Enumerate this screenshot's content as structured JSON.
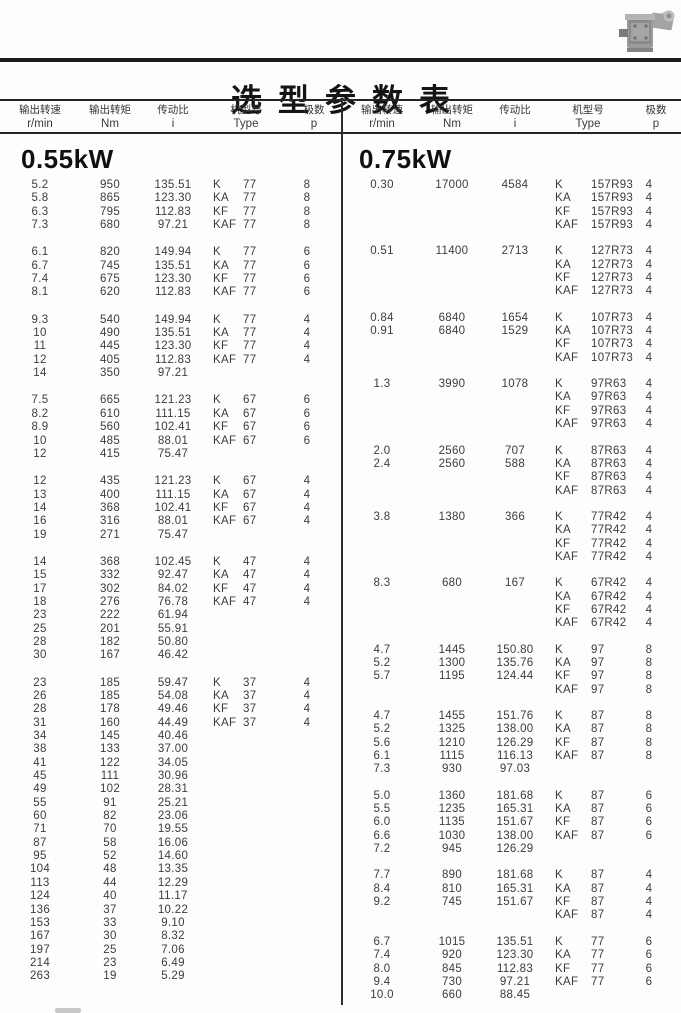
{
  "title": "选型参数表",
  "columns": {
    "speed_label": "输出转速",
    "speed_unit": "r/min",
    "torque_label": "输出转矩",
    "torque_unit": "Nm",
    "ratio_label": "传动比",
    "ratio_unit": "i",
    "type_label": "机型号",
    "type_unit": "Type",
    "poles_label": "极数",
    "poles_unit": "p"
  },
  "logo": "gearmotor-photo",
  "colors": {
    "rule": "#1b1b1b",
    "text": "#3c3c3c",
    "background": "#fdfdfc"
  },
  "tables": [
    {
      "power": "0.55kW",
      "groups": [
        {
          "rows": [
            [
              "5.2",
              "950",
              "135.51",
              "K",
              "77",
              "8"
            ],
            [
              "5.8",
              "865",
              "123.30",
              "KA",
              "77",
              "8"
            ],
            [
              "6.3",
              "795",
              "112.83",
              "KF",
              "77",
              "8"
            ],
            [
              "7.3",
              "680",
              "97.21",
              "KAF",
              "77",
              "8"
            ]
          ]
        },
        {
          "rows": [
            [
              "6.1",
              "820",
              "149.94",
              "K",
              "77",
              "6"
            ],
            [
              "6.7",
              "745",
              "135.51",
              "KA",
              "77",
              "6"
            ],
            [
              "7.4",
              "675",
              "123.30",
              "KF",
              "77",
              "6"
            ],
            [
              "8.1",
              "620",
              "112.83",
              "KAF",
              "77",
              "6"
            ]
          ]
        },
        {
          "rows": [
            [
              "9.3",
              "540",
              "149.94",
              "K",
              "77",
              "4"
            ],
            [
              "10",
              "490",
              "135.51",
              "KA",
              "77",
              "4"
            ],
            [
              "11",
              "445",
              "123.30",
              "KF",
              "77",
              "4"
            ],
            [
              "12",
              "405",
              "112.83",
              "KAF",
              "77",
              "4"
            ],
            [
              "14",
              "350",
              "97.21",
              "",
              "",
              ""
            ]
          ]
        },
        {
          "rows": [
            [
              "7.5",
              "665",
              "121.23",
              "K",
              "67",
              "6"
            ],
            [
              "8.2",
              "610",
              "111.15",
              "KA",
              "67",
              "6"
            ],
            [
              "8.9",
              "560",
              "102.41",
              "KF",
              "67",
              "6"
            ],
            [
              "10",
              "485",
              "88.01",
              "KAF",
              "67",
              "6"
            ],
            [
              "12",
              "415",
              "75.47",
              "",
              "",
              ""
            ]
          ]
        },
        {
          "rows": [
            [
              "12",
              "435",
              "121.23",
              "K",
              "67",
              "4"
            ],
            [
              "13",
              "400",
              "111.15",
              "KA",
              "67",
              "4"
            ],
            [
              "14",
              "368",
              "102.41",
              "KF",
              "67",
              "4"
            ],
            [
              "16",
              "316",
              "88.01",
              "KAF",
              "67",
              "4"
            ],
            [
              "19",
              "271",
              "75.47",
              "",
              "",
              ""
            ]
          ]
        },
        {
          "rows": [
            [
              "14",
              "368",
              "102.45",
              "K",
              "47",
              "4"
            ],
            [
              "15",
              "332",
              "92.47",
              "KA",
              "47",
              "4"
            ],
            [
              "17",
              "302",
              "84.02",
              "KF",
              "47",
              "4"
            ],
            [
              "18",
              "276",
              "76.78",
              "KAF",
              "47",
              "4"
            ],
            [
              "23",
              "222",
              "61.94",
              "",
              "",
              ""
            ],
            [
              "25",
              "201",
              "55.91",
              "",
              "",
              ""
            ],
            [
              "28",
              "182",
              "50.80",
              "",
              "",
              ""
            ],
            [
              "30",
              "167",
              "46.42",
              "",
              "",
              ""
            ]
          ]
        },
        {
          "rows": [
            [
              "23",
              "185",
              "59.47",
              "K",
              "37",
              "4"
            ],
            [
              "26",
              "185",
              "54.08",
              "KA",
              "37",
              "4"
            ],
            [
              "28",
              "178",
              "49.46",
              "KF",
              "37",
              "4"
            ],
            [
              "31",
              "160",
              "44.49",
              "KAF",
              "37",
              "4"
            ],
            [
              "34",
              "145",
              "40.46",
              "",
              "",
              ""
            ],
            [
              "38",
              "133",
              "37.00",
              "",
              "",
              ""
            ],
            [
              "41",
              "122",
              "34.05",
              "",
              "",
              ""
            ],
            [
              "45",
              "111",
              "30.96",
              "",
              "",
              ""
            ],
            [
              "49",
              "102",
              "28.31",
              "",
              "",
              ""
            ],
            [
              "55",
              "91",
              "25.21",
              "",
              "",
              ""
            ],
            [
              "60",
              "82",
              "23.06",
              "",
              "",
              ""
            ],
            [
              "71",
              "70",
              "19.55",
              "",
              "",
              ""
            ],
            [
              "87",
              "58",
              "16.06",
              "",
              "",
              ""
            ],
            [
              "95",
              "52",
              "14.60",
              "",
              "",
              ""
            ],
            [
              "104",
              "48",
              "13.35",
              "",
              "",
              ""
            ],
            [
              "113",
              "44",
              "12.29",
              "",
              "",
              ""
            ],
            [
              "124",
              "40",
              "11.17",
              "",
              "",
              ""
            ],
            [
              "136",
              "37",
              "10.22",
              "",
              "",
              ""
            ],
            [
              "153",
              "33",
              "9.10",
              "",
              "",
              ""
            ],
            [
              "167",
              "30",
              "8.32",
              "",
              "",
              ""
            ],
            [
              "197",
              "25",
              "7.06",
              "",
              "",
              ""
            ],
            [
              "214",
              "23",
              "6.49",
              "",
              "",
              ""
            ],
            [
              "263",
              "19",
              "5.29",
              "",
              "",
              ""
            ]
          ]
        }
      ]
    },
    {
      "power": "0.75kW",
      "groups": [
        {
          "rows": [
            [
              "0.30",
              "17000",
              "4584",
              "K",
              "157R93",
              "4"
            ],
            [
              "",
              "",
              "",
              "KA",
              "157R93",
              "4"
            ],
            [
              "",
              "",
              "",
              "KF",
              "157R93",
              "4"
            ],
            [
              "",
              "",
              "",
              "KAF",
              "157R93",
              "4"
            ]
          ]
        },
        {
          "rows": [
            [
              "0.51",
              "11400",
              "2713",
              "K",
              "127R73",
              "4"
            ],
            [
              "",
              "",
              "",
              "KA",
              "127R73",
              "4"
            ],
            [
              "",
              "",
              "",
              "KF",
              "127R73",
              "4"
            ],
            [
              "",
              "",
              "",
              "KAF",
              "127R73",
              "4"
            ]
          ]
        },
        {
          "rows": [
            [
              "0.84",
              "6840",
              "1654",
              "K",
              "107R73",
              "4"
            ],
            [
              "0.91",
              "6840",
              "1529",
              "KA",
              "107R73",
              "4"
            ],
            [
              "",
              "",
              "",
              "KF",
              "107R73",
              "4"
            ],
            [
              "",
              "",
              "",
              "KAF",
              "107R73",
              "4"
            ]
          ]
        },
        {
          "rows": [
            [
              "1.3",
              "3990",
              "1078",
              "K",
              "97R63",
              "4"
            ],
            [
              "",
              "",
              "",
              "KA",
              "97R63",
              "4"
            ],
            [
              "",
              "",
              "",
              "KF",
              "97R63",
              "4"
            ],
            [
              "",
              "",
              "",
              "KAF",
              "97R63",
              "4"
            ]
          ]
        },
        {
          "rows": [
            [
              "2.0",
              "2560",
              "707",
              "K",
              "87R63",
              "4"
            ],
            [
              "2.4",
              "2560",
              "588",
              "KA",
              "87R63",
              "4"
            ],
            [
              "",
              "",
              "",
              "KF",
              "87R63",
              "4"
            ],
            [
              "",
              "",
              "",
              "KAF",
              "87R63",
              "4"
            ]
          ]
        },
        {
          "rows": [
            [
              "3.8",
              "1380",
              "366",
              "K",
              "77R42",
              "4"
            ],
            [
              "",
              "",
              "",
              "KA",
              "77R42",
              "4"
            ],
            [
              "",
              "",
              "",
              "KF",
              "77R42",
              "4"
            ],
            [
              "",
              "",
              "",
              "KAF",
              "77R42",
              "4"
            ]
          ]
        },
        {
          "rows": [
            [
              "8.3",
              "680",
              "167",
              "K",
              "67R42",
              "4"
            ],
            [
              "",
              "",
              "",
              "KA",
              "67R42",
              "4"
            ],
            [
              "",
              "",
              "",
              "KF",
              "67R42",
              "4"
            ],
            [
              "",
              "",
              "",
              "KAF",
              "67R42",
              "4"
            ]
          ]
        },
        {
          "rows": [
            [
              "4.7",
              "1445",
              "150.80",
              "K",
              "97",
              "8"
            ],
            [
              "5.2",
              "1300",
              "135.76",
              "KA",
              "97",
              "8"
            ],
            [
              "5.7",
              "1195",
              "124.44",
              "KF",
              "97",
              "8"
            ],
            [
              "",
              "",
              "",
              "KAF",
              "97",
              "8"
            ]
          ]
        },
        {
          "rows": [
            [
              "4.7",
              "1455",
              "151.76",
              "K",
              "87",
              "8"
            ],
            [
              "5.2",
              "1325",
              "138.00",
              "KA",
              "87",
              "8"
            ],
            [
              "5.6",
              "1210",
              "126.29",
              "KF",
              "87",
              "8"
            ],
            [
              "6.1",
              "1115",
              "116.13",
              "KAF",
              "87",
              "8"
            ],
            [
              "7.3",
              "930",
              "97.03",
              "",
              "",
              ""
            ]
          ]
        },
        {
          "rows": [
            [
              "5.0",
              "1360",
              "181.68",
              "K",
              "87",
              "6"
            ],
            [
              "5.5",
              "1235",
              "165.31",
              "KA",
              "87",
              "6"
            ],
            [
              "6.0",
              "1135",
              "151.67",
              "KF",
              "87",
              "6"
            ],
            [
              "6.6",
              "1030",
              "138.00",
              "KAF",
              "87",
              "6"
            ],
            [
              "7.2",
              "945",
              "126.29",
              "",
              "",
              ""
            ]
          ]
        },
        {
          "rows": [
            [
              "7.7",
              "890",
              "181.68",
              "K",
              "87",
              "4"
            ],
            [
              "8.4",
              "810",
              "165.31",
              "KA",
              "87",
              "4"
            ],
            [
              "9.2",
              "745",
              "151.67",
              "KF",
              "87",
              "4"
            ],
            [
              "",
              "",
              "",
              "KAF",
              "87",
              "4"
            ]
          ]
        },
        {
          "rows": [
            [
              "6.7",
              "1015",
              "135.51",
              "K",
              "77",
              "6"
            ],
            [
              "7.4",
              "920",
              "123.30",
              "KA",
              "77",
              "6"
            ],
            [
              "8.0",
              "845",
              "112.83",
              "KF",
              "77",
              "6"
            ],
            [
              "9.4",
              "730",
              "97.21",
              "KAF",
              "77",
              "6"
            ],
            [
              "10.0",
              "660",
              "88.45",
              "",
              "",
              ""
            ]
          ]
        }
      ]
    }
  ]
}
